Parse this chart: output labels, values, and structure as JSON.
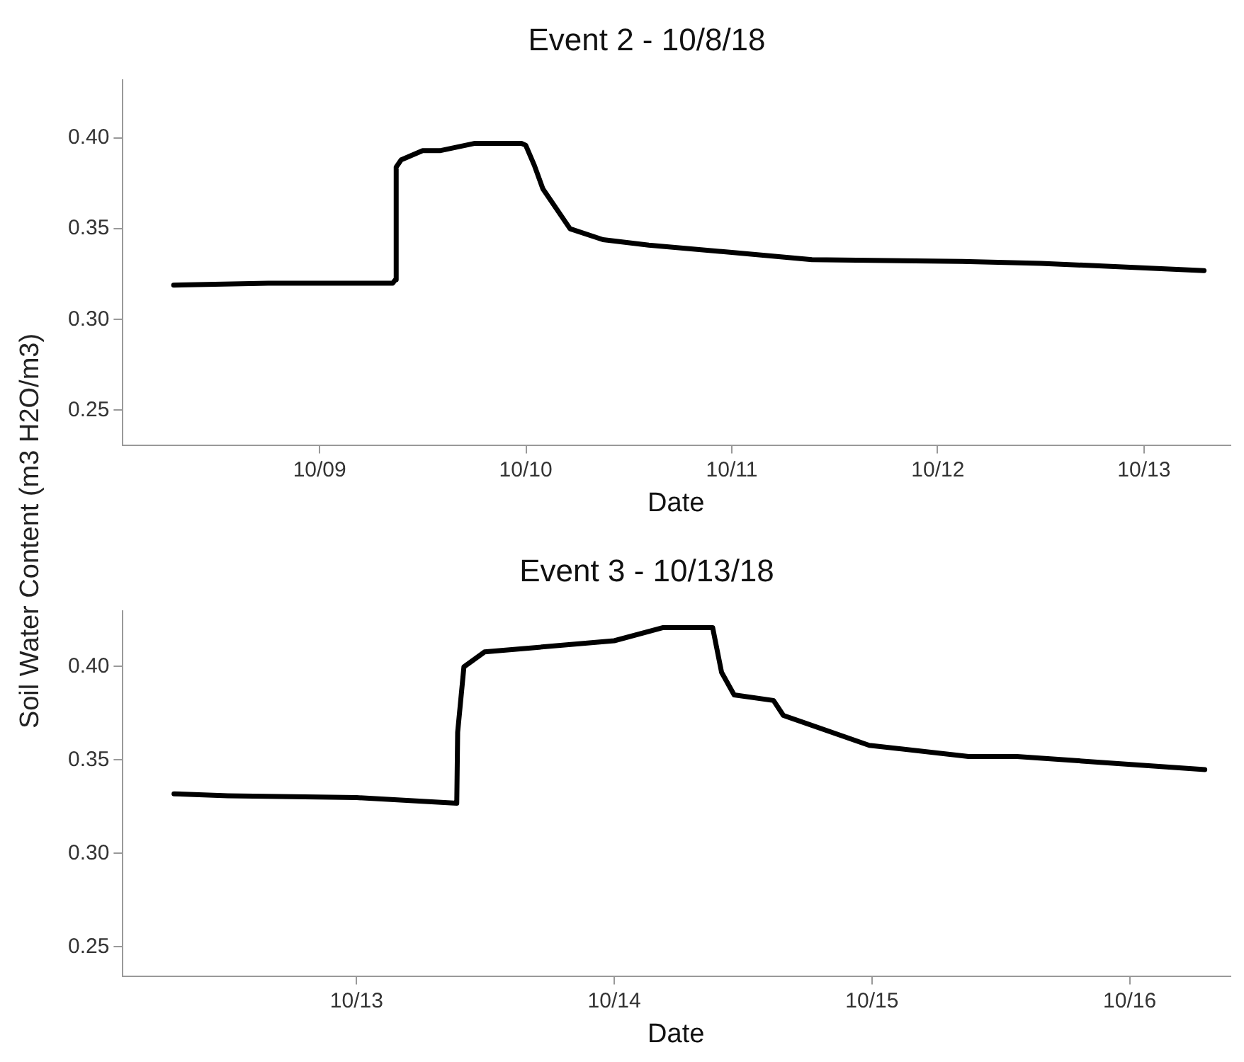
{
  "chart_data": [
    {
      "type": "line",
      "title": "Event 2 - 10/8/18",
      "xlabel": "Date",
      "ylabel": "Soil Water Content (m3 H2O/m3)",
      "grid": false,
      "legend": false,
      "x": [
        "--10-08T07:00",
        "--10-08T18:00",
        "--10-09T08:30",
        "--10-09T08:50",
        "--10-09T08:55",
        "--10-09T09:30",
        "--10-09T12:00",
        "--10-09T14:00",
        "--10-09T18:00",
        "--10-09T23:30",
        "--10-10T00:00",
        "--10-10T01:00",
        "--10-10T02:00",
        "--10-10T05:10",
        "--10-10T09:00",
        "--10-10T14:20",
        "--10-11T00:00",
        "--10-11T09:20",
        "--10-12T02:50",
        "--10-12T12:00",
        "--10-13T07:00"
      ],
      "series": [
        {
          "color": "#000000",
          "values": [
            0.319,
            0.32,
            0.32,
            0.322,
            0.384,
            0.388,
            0.393,
            0.393,
            0.397,
            0.397,
            0.396,
            0.385,
            0.372,
            0.35,
            0.344,
            0.341,
            0.337,
            0.333,
            0.332,
            0.331,
            0.327
          ]
        }
      ],
      "xlim": [
        "--10-08T01:00",
        "--10-13T10:00"
      ],
      "xticks": [
        {
          "value": "--10-09",
          "label": "10/09"
        },
        {
          "value": "--10-10",
          "label": "10/10"
        },
        {
          "value": "--10-11",
          "label": "10/11"
        },
        {
          "value": "--10-12",
          "label": "10/12"
        },
        {
          "value": "--10-13",
          "label": "10/13"
        }
      ],
      "ylim": [
        0.231,
        0.432
      ],
      "yticks": [
        {
          "value": 0.25,
          "label": "0.25"
        },
        {
          "value": 0.3,
          "label": "0.30"
        },
        {
          "value": 0.35,
          "label": "0.35"
        },
        {
          "value": 0.4,
          "label": "0.40"
        }
      ]
    },
    {
      "type": "line",
      "title": "Event 3 - 10/13/18",
      "xlabel": "Date",
      "grid": false,
      "legend": false,
      "x": [
        "--10-12T07:00",
        "--10-12T12:00",
        "--10-13T00:00",
        "--10-13T09:20",
        "--10-13T09:25",
        "--10-13T10:00",
        "--10-13T11:55",
        "--10-14T00:00",
        "--10-14T04:30",
        "--10-14T09:10",
        "--10-14T10:00",
        "--10-14T11:10",
        "--10-14T14:50",
        "--10-14T15:45",
        "--10-14T23:45",
        "--10-15T09:00",
        "--10-15T13:30",
        "--10-16T07:00"
      ],
      "series": [
        {
          "color": "#000000",
          "values": [
            0.332,
            0.331,
            0.33,
            0.327,
            0.365,
            0.4,
            0.408,
            0.414,
            0.421,
            0.421,
            0.397,
            0.385,
            0.382,
            0.374,
            0.358,
            0.352,
            0.352,
            0.345
          ]
        }
      ],
      "xlim": [
        "--10-12T02:10",
        "--10-16T09:20"
      ],
      "xticks": [
        {
          "value": "--10-13",
          "label": "10/13"
        },
        {
          "value": "--10-14",
          "label": "10/14"
        },
        {
          "value": "--10-15",
          "label": "10/15"
        },
        {
          "value": "--10-16",
          "label": "10/16"
        }
      ],
      "ylim": [
        0.2345,
        0.43
      ],
      "yticks": [
        {
          "value": 0.25,
          "label": "0.25"
        },
        {
          "value": 0.3,
          "label": "0.30"
        },
        {
          "value": 0.35,
          "label": "0.35"
        },
        {
          "value": 0.4,
          "label": "0.40"
        }
      ]
    }
  ]
}
